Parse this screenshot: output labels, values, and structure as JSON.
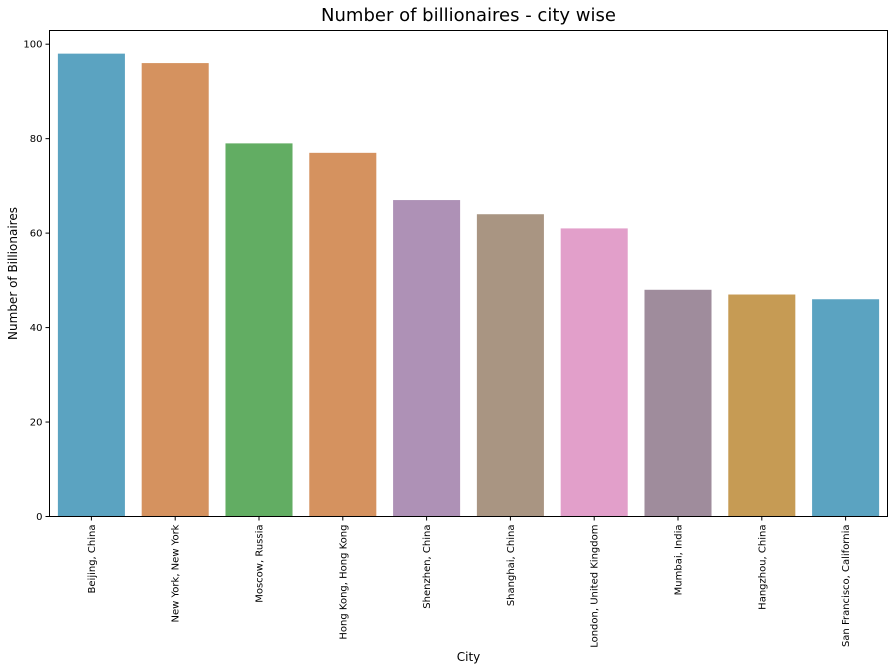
{
  "chart_data": {
    "type": "bar",
    "title": "Number of billionaires - city wise",
    "xlabel": "City",
    "ylabel": "Number of Billionaires",
    "categories": [
      "Beijing, China",
      "New York, New York",
      "Moscow, Russia",
      "Hong Kong, Hong Kong",
      "Shenzhen, China",
      "Shanghai, China",
      "London, United Kingdom",
      "Mumbai, India",
      "Hangzhou, China",
      "San Francisco, California"
    ],
    "values": [
      98,
      96,
      79,
      77,
      67,
      64,
      61,
      48,
      47,
      46
    ],
    "colors": [
      "#5ba3c1",
      "#d5925f",
      "#62ad63",
      "#d5925f",
      "#ae91b6",
      "#a99582",
      "#e29fca",
      "#9f8c9c",
      "#c69b54",
      "#5ba3c1"
    ],
    "ylim": [
      0,
      102.9
    ],
    "yticks": [
      0,
      20,
      40,
      60,
      80,
      100
    ],
    "grid": false,
    "legend": false
  }
}
